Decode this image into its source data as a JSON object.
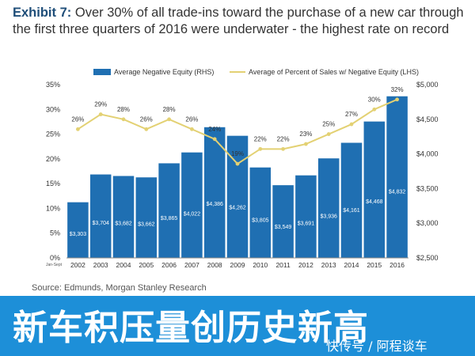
{
  "header": {
    "exhibit_label": "Exhibit 7:",
    "title_text": "Over 30% of all trade-ins toward the purchase of a new car through the first three quarters of 2016 were underwater - the highest rate on record"
  },
  "source": "Source: Edmunds, Morgan Stanley Research",
  "banner": {
    "text": "新车积压量创历史新高",
    "watermark": "快传号 / 阿程谈车"
  },
  "colors": {
    "bar": "#1f6fb2",
    "line": "#e3d173",
    "banner": "#1d8fd8",
    "title_accent": "#1f4e79"
  },
  "chart_data": {
    "type": "bar",
    "categories": [
      "2002",
      "2003",
      "2004",
      "2005",
      "2006",
      "2007",
      "2008",
      "2009",
      "2010",
      "2011",
      "2012",
      "2013",
      "2014",
      "2015",
      "2016"
    ],
    "x_sublabel": "Jan-Sept",
    "series": [
      {
        "name": "Average Negative Equity (RHS)",
        "type": "bar",
        "axis": "right",
        "values": [
          3303,
          3704,
          3682,
          3662,
          3865,
          4022,
          4386,
          4262,
          3805,
          3549,
          3691,
          3936,
          4161,
          4468,
          4832
        ],
        "labels": [
          "$3,303",
          "$3,704",
          "$3,682",
          "$3,662",
          "$3,865",
          "$4,022",
          "$4,386",
          "$4,262",
          "$3,805",
          "$3,549",
          "$3,691",
          "$3,936",
          "$4,161",
          "$4,468",
          "$4,832"
        ]
      },
      {
        "name": "Average of Percent of Sales w/ Negative Equity (LHS)",
        "type": "line",
        "axis": "left",
        "values": [
          26,
          29,
          28,
          26,
          28,
          26,
          24,
          19,
          22,
          22,
          23,
          25,
          27,
          30,
          32
        ],
        "labels": [
          "26%",
          "29%",
          "28%",
          "26%",
          "28%",
          "26%",
          "24%",
          "19%",
          "22%",
          "22%",
          "23%",
          "25%",
          "27%",
          "30%",
          "32%"
        ]
      }
    ],
    "left_axis": {
      "range": [
        0,
        35
      ],
      "ticks": [
        "0%",
        "5%",
        "10%",
        "15%",
        "20%",
        "25%",
        "30%",
        "35%"
      ]
    },
    "right_axis": {
      "range": [
        2500,
        5000
      ],
      "ticks": [
        "$2,500",
        "$3,000",
        "$3,500",
        "$4,000",
        "$4,500",
        "$5,000"
      ]
    },
    "legend_position": "top",
    "grid": false
  }
}
